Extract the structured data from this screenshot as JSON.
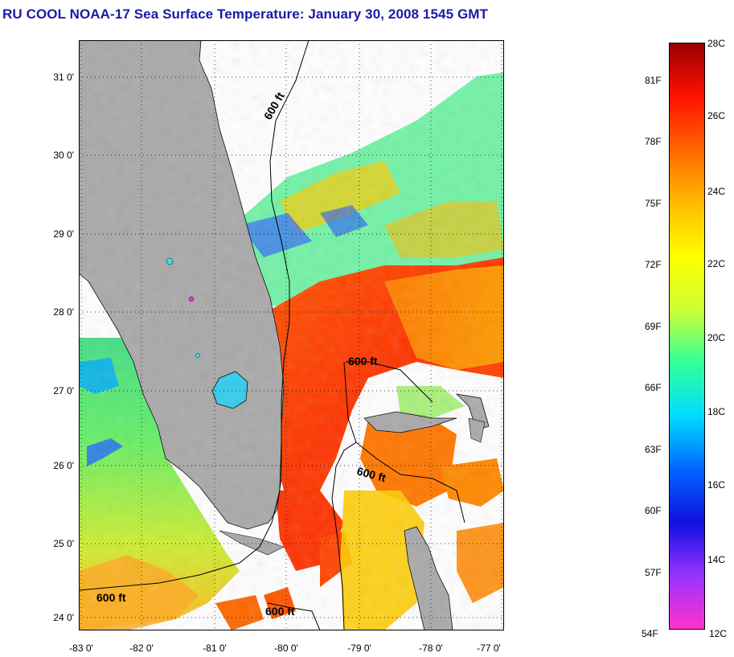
{
  "title": "RU COOL  NOAA-17  Sea Surface Temperature:  January 30, 2008 1545 GMT",
  "map": {
    "lat_ticks": [
      "31 0'",
      "30 0'",
      "29 0'",
      "28 0'",
      "27 0'",
      "26 0'",
      "25 0'",
      "24 0'"
    ],
    "lon_ticks": [
      "-83 0'",
      "-82 0'",
      "-81 0'",
      "-80 0'",
      "-79 0'",
      "-78 0'",
      "-77 0'"
    ],
    "contour_labels": [
      "600 ft",
      "600 ft",
      "600 ft",
      "600 ft",
      "600 ft"
    ],
    "land_color": "#a9a9a9",
    "cloud_color": "#ffffff"
  },
  "colorbar": {
    "fahrenheit_labels": [
      "81F",
      "78F",
      "75F",
      "72F",
      "69F",
      "66F",
      "63F",
      "60F",
      "57F",
      "54F"
    ],
    "celsius_labels": [
      "28C",
      "26C",
      "24C",
      "22C",
      "20C",
      "18C",
      "16C",
      "14C",
      "12C"
    ],
    "colors": [
      "#ff33cc",
      "#9933ff",
      "#1010e0",
      "#0066ff",
      "#00ddff",
      "#33ff99",
      "#ccff33",
      "#ffff00",
      "#ffbb00",
      "#ff6600",
      "#ff1100",
      "#990000"
    ]
  }
}
